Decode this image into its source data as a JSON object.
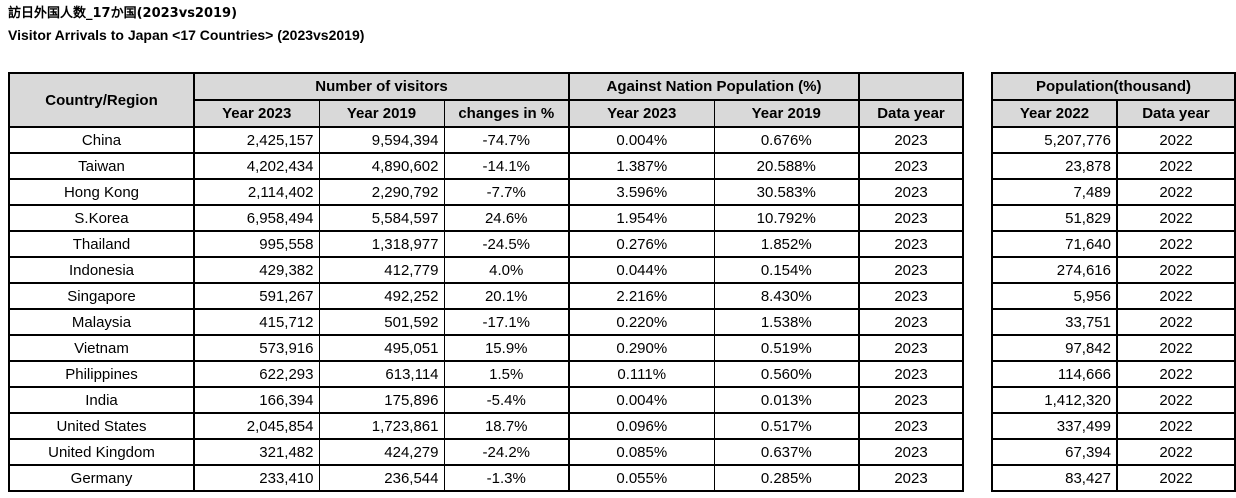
{
  "titles": {
    "japanese": "訪日外国人数_17か国(2023vs2019)",
    "english": "Visitor Arrivals to Japan <17 Countries> (2023vs2019)"
  },
  "colors": {
    "header_background": "#d9d9d9",
    "border": "#000000",
    "text": "#000000",
    "body_background": "#ffffff"
  },
  "main_table": {
    "corner_header": "Country/Region",
    "group_headers": {
      "visitors": "Number of visitors",
      "against_population": "Against Nation Population (%)",
      "empty": ""
    },
    "sub_headers": [
      "Year 2023",
      "Year 2019",
      "changes in %",
      "Year 2023",
      "Year 2019",
      "Data year"
    ]
  },
  "population_table": {
    "group_header": "Population(thousand)",
    "sub_headers": [
      "Year 2022",
      "Data year"
    ]
  },
  "rows": [
    {
      "country": "China",
      "visitors_2023": "2,425,157",
      "visitors_2019": "9,594,394",
      "change_pct": "-74.7%",
      "against_pop_2023": "0.004%",
      "against_pop_2019": "0.676%",
      "data_year": "2023",
      "population_2022": "5,207,776",
      "population_data_year": "2022"
    },
    {
      "country": "Taiwan",
      "visitors_2023": "4,202,434",
      "visitors_2019": "4,890,602",
      "change_pct": "-14.1%",
      "against_pop_2023": "1.387%",
      "against_pop_2019": "20.588%",
      "data_year": "2023",
      "population_2022": "23,878",
      "population_data_year": "2022"
    },
    {
      "country": "Hong Kong",
      "visitors_2023": "2,114,402",
      "visitors_2019": "2,290,792",
      "change_pct": "-7.7%",
      "against_pop_2023": "3.596%",
      "against_pop_2019": "30.583%",
      "data_year": "2023",
      "population_2022": "7,489",
      "population_data_year": "2022"
    },
    {
      "country": "S.Korea",
      "visitors_2023": "6,958,494",
      "visitors_2019": "5,584,597",
      "change_pct": "24.6%",
      "against_pop_2023": "1.954%",
      "against_pop_2019": "10.792%",
      "data_year": "2023",
      "population_2022": "51,829",
      "population_data_year": "2022"
    },
    {
      "country": "Thailand",
      "visitors_2023": "995,558",
      "visitors_2019": "1,318,977",
      "change_pct": "-24.5%",
      "against_pop_2023": "0.276%",
      "against_pop_2019": "1.852%",
      "data_year": "2023",
      "population_2022": "71,640",
      "population_data_year": "2022"
    },
    {
      "country": "Indonesia",
      "visitors_2023": "429,382",
      "visitors_2019": "412,779",
      "change_pct": "4.0%",
      "against_pop_2023": "0.044%",
      "against_pop_2019": "0.154%",
      "data_year": "2023",
      "population_2022": "274,616",
      "population_data_year": "2022"
    },
    {
      "country": "Singapore",
      "visitors_2023": "591,267",
      "visitors_2019": "492,252",
      "change_pct": "20.1%",
      "against_pop_2023": "2.216%",
      "against_pop_2019": "8.430%",
      "data_year": "2023",
      "population_2022": "5,956",
      "population_data_year": "2022"
    },
    {
      "country": "Malaysia",
      "visitors_2023": "415,712",
      "visitors_2019": "501,592",
      "change_pct": "-17.1%",
      "against_pop_2023": "0.220%",
      "against_pop_2019": "1.538%",
      "data_year": "2023",
      "population_2022": "33,751",
      "population_data_year": "2022"
    },
    {
      "country": "Vietnam",
      "visitors_2023": "573,916",
      "visitors_2019": "495,051",
      "change_pct": "15.9%",
      "against_pop_2023": "0.290%",
      "against_pop_2019": "0.519%",
      "data_year": "2023",
      "population_2022": "97,842",
      "population_data_year": "2022"
    },
    {
      "country": "Philippines",
      "visitors_2023": "622,293",
      "visitors_2019": "613,114",
      "change_pct": "1.5%",
      "against_pop_2023": "0.111%",
      "against_pop_2019": "0.560%",
      "data_year": "2023",
      "population_2022": "114,666",
      "population_data_year": "2022"
    },
    {
      "country": "India",
      "visitors_2023": "166,394",
      "visitors_2019": "175,896",
      "change_pct": "-5.4%",
      "against_pop_2023": "0.004%",
      "against_pop_2019": "0.013%",
      "data_year": "2023",
      "population_2022": "1,412,320",
      "population_data_year": "2022"
    },
    {
      "country": "United States",
      "visitors_2023": "2,045,854",
      "visitors_2019": "1,723,861",
      "change_pct": "18.7%",
      "against_pop_2023": "0.096%",
      "against_pop_2019": "0.517%",
      "data_year": "2023",
      "population_2022": "337,499",
      "population_data_year": "2022"
    },
    {
      "country": "United Kingdom",
      "visitors_2023": "321,482",
      "visitors_2019": "424,279",
      "change_pct": "-24.2%",
      "against_pop_2023": "0.085%",
      "against_pop_2019": "0.637%",
      "data_year": "2023",
      "population_2022": "67,394",
      "population_data_year": "2022"
    },
    {
      "country": "Germany",
      "visitors_2023": "233,410",
      "visitors_2019": "236,544",
      "change_pct": "-1.3%",
      "against_pop_2023": "0.055%",
      "against_pop_2019": "0.285%",
      "data_year": "2023",
      "population_2022": "83,427",
      "population_data_year": "2022"
    }
  ]
}
